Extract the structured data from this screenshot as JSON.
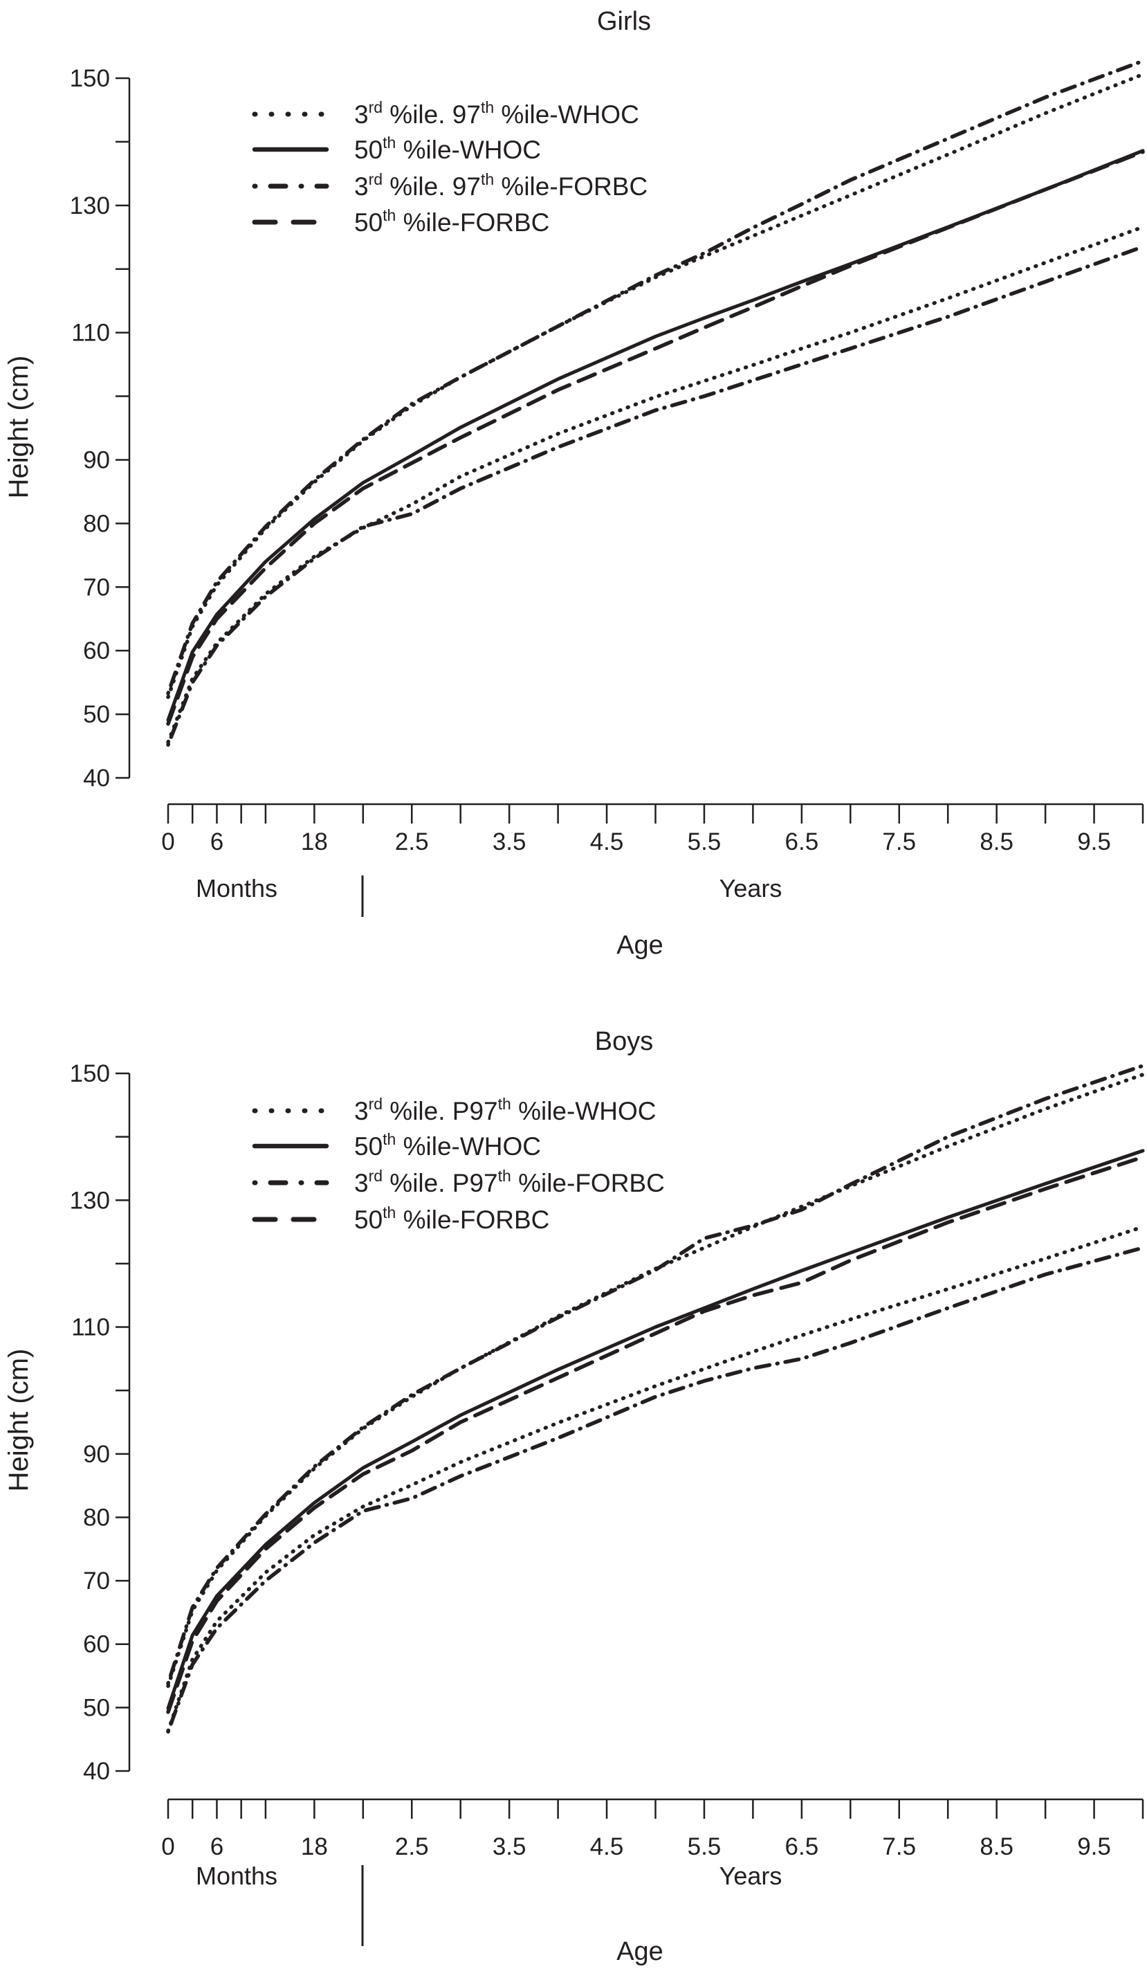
{
  "chart_data": [
    {
      "type": "line",
      "title": "Girls",
      "xlabel": "Age",
      "ylabel": "Height (cm)",
      "xlim": [
        0,
        10
      ],
      "ylim": [
        40,
        150
      ],
      "grid": false,
      "legend_position": "top-left",
      "x_unit_note": "age in years",
      "x_segments": [
        {
          "label": "Months"
        },
        {
          "label": "Years"
        }
      ],
      "x_ticks": [
        0,
        0.25,
        0.5,
        0.75,
        1,
        1.5,
        2,
        2.5,
        3,
        3.5,
        4,
        4.5,
        5,
        5.5,
        6,
        6.5,
        7,
        7.5,
        8,
        8.5,
        9,
        9.5,
        10
      ],
      "x_tick_labels": [
        {
          "at": 0,
          "text": "0"
        },
        {
          "at": 0.5,
          "text": "6"
        },
        {
          "at": 1.5,
          "text": "18"
        },
        {
          "at": 2.5,
          "text": "2.5"
        },
        {
          "at": 3.5,
          "text": "3.5"
        },
        {
          "at": 4.5,
          "text": "4.5"
        },
        {
          "at": 5.5,
          "text": "5.5"
        },
        {
          "at": 6.5,
          "text": "6.5"
        },
        {
          "at": 7.5,
          "text": "7.5"
        },
        {
          "at": 8.5,
          "text": "8.5"
        },
        {
          "at": 9.5,
          "text": "9.5"
        }
      ],
      "y_ticks": [
        40,
        50,
        60,
        70,
        80,
        90,
        100,
        110,
        120,
        130,
        140,
        150
      ],
      "y_tick_labels": [
        "40",
        "50",
        "60",
        "70",
        "80",
        "90",
        "110",
        "130",
        "150"
      ],
      "legend": [
        {
          "style": "dotted",
          "parts": [
            {
              "t": "3"
            },
            {
              "t": "rd",
              "sup": true
            },
            {
              "t": " %ile. 97"
            },
            {
              "t": "th",
              "sup": true
            },
            {
              "t": " %ile-WHOC"
            }
          ]
        },
        {
          "style": "solid",
          "parts": [
            {
              "t": "50"
            },
            {
              "t": "th",
              "sup": true
            },
            {
              "t": " %ile-WHOC"
            }
          ]
        },
        {
          "style": "dashdot",
          "parts": [
            {
              "t": "3"
            },
            {
              "t": "rd",
              "sup": true
            },
            {
              "t": " %ile. 97"
            },
            {
              "t": "th",
              "sup": true
            },
            {
              "t": " %ile-FORBC"
            }
          ]
        },
        {
          "style": "dashed",
          "parts": [
            {
              "t": "50"
            },
            {
              "t": "th",
              "sup": true
            },
            {
              "t": " %ile-FORBC"
            }
          ]
        }
      ],
      "x": [
        0,
        0.25,
        0.5,
        1,
        1.5,
        2,
        2.5,
        3,
        4,
        5,
        5.5,
        6,
        6.5,
        7,
        8,
        9,
        10
      ],
      "series": [
        {
          "group": "WHOC 3rd",
          "style": "dotted",
          "values": [
            45.6,
            55.6,
            61.2,
            68.9,
            74.8,
            79.3,
            83,
            87.4,
            94.1,
            99.9,
            102.4,
            104.9,
            107.5,
            110,
            115.4,
            121,
            126.6
          ]
        },
        {
          "group": "WHOC 97th",
          "style": "dotted",
          "values": [
            52.7,
            63.8,
            70.3,
            79.2,
            86.5,
            93,
            98.5,
            103,
            111,
            118.7,
            122,
            125.2,
            128.4,
            131.6,
            138,
            144.5,
            150.6
          ]
        },
        {
          "group": "WHOC 50th",
          "style": "solid",
          "values": [
            49.1,
            59.8,
            65.7,
            74.0,
            80.7,
            86.4,
            90.7,
            95.1,
            102.7,
            109.4,
            112.3,
            115.1,
            118,
            120.8,
            126.6,
            132.5,
            138.6
          ]
        },
        {
          "group": "FORBC 3rd",
          "style": "dashdot",
          "values": [
            45.2,
            55,
            60.8,
            68.5,
            74.5,
            79.5,
            81.5,
            85.5,
            92,
            97.8,
            100,
            102.5,
            105,
            107.5,
            112.5,
            118,
            123.5
          ]
        },
        {
          "group": "FORBC 97th",
          "style": "dashdot",
          "values": [
            53.3,
            64.3,
            70.8,
            79.5,
            86.8,
            93.2,
            98.8,
            103,
            111,
            119,
            122.5,
            126.5,
            130.2,
            134,
            140.5,
            147,
            152.7
          ]
        },
        {
          "group": "FORBC 50th",
          "style": "dashed",
          "values": [
            48.5,
            59,
            65,
            73,
            80,
            85.5,
            89.5,
            93.5,
            101,
            107.5,
            110.8,
            114,
            117.3,
            120.5,
            126.5,
            132.5,
            138.4
          ]
        }
      ]
    },
    {
      "type": "line",
      "title": "Boys",
      "xlabel": "Age",
      "ylabel": "Height (cm)",
      "xlim": [
        0,
        10
      ],
      "ylim": [
        40,
        150
      ],
      "grid": false,
      "legend_position": "top-left",
      "x_segments": [
        {
          "label": "Months"
        },
        {
          "label": "Years"
        }
      ],
      "x_ticks": [
        0,
        0.25,
        0.5,
        0.75,
        1,
        1.5,
        2,
        2.5,
        3,
        3.5,
        4,
        4.5,
        5,
        5.5,
        6,
        6.5,
        7,
        7.5,
        8,
        8.5,
        9,
        9.5,
        10
      ],
      "x_tick_labels": [
        {
          "at": 0,
          "text": "0"
        },
        {
          "at": 0.5,
          "text": "6"
        },
        {
          "at": 1.5,
          "text": "18"
        },
        {
          "at": 2.5,
          "text": "2.5"
        },
        {
          "at": 3.5,
          "text": "3.5"
        },
        {
          "at": 4.5,
          "text": "4.5"
        },
        {
          "at": 5.5,
          "text": "5.5"
        },
        {
          "at": 6.5,
          "text": "6.5"
        },
        {
          "at": 7.5,
          "text": "7.5"
        },
        {
          "at": 8.5,
          "text": "8.5"
        },
        {
          "at": 9.5,
          "text": "9.5"
        }
      ],
      "y_ticks": [
        40,
        50,
        60,
        70,
        80,
        90,
        100,
        110,
        120,
        130,
        140,
        150
      ],
      "y_tick_labels": [
        "40",
        "50",
        "60",
        "70",
        "80",
        "90",
        "110",
        "130",
        "150"
      ],
      "legend": [
        {
          "style": "dotted",
          "parts": [
            {
              "t": "3"
            },
            {
              "t": "rd",
              "sup": true
            },
            {
              "t": " %ile. P97"
            },
            {
              "t": "th",
              "sup": true
            },
            {
              "t": " %ile-WHOC"
            }
          ]
        },
        {
          "style": "solid",
          "parts": [
            {
              "t": "50"
            },
            {
              "t": "th",
              "sup": true
            },
            {
              "t": " %ile-WHOC"
            }
          ]
        },
        {
          "style": "dashdot",
          "parts": [
            {
              "t": "3"
            },
            {
              "t": "rd",
              "sup": true
            },
            {
              "t": " %ile. P97"
            },
            {
              "t": "th",
              "sup": true
            },
            {
              "t": " %ile-FORBC"
            }
          ]
        },
        {
          "style": "dashed",
          "parts": [
            {
              "t": "50"
            },
            {
              "t": "th",
              "sup": true
            },
            {
              "t": " %ile-FORBC"
            }
          ]
        }
      ],
      "x": [
        0,
        0.25,
        0.5,
        1,
        1.5,
        2,
        2.5,
        3,
        4,
        5,
        5.5,
        6,
        6.5,
        7,
        8,
        9,
        10
      ],
      "series": [
        {
          "group": "WHOC 3rd",
          "style": "dotted",
          "values": [
            46.3,
            57.6,
            63.6,
            71.3,
            77.2,
            81.7,
            85.1,
            88.7,
            94.9,
            100.7,
            103.4,
            106.1,
            108.7,
            111.2,
            116,
            120.8,
            125.8
          ]
        },
        {
          "group": "WHOC 97th",
          "style": "dotted",
          "values": [
            53.4,
            65.3,
            71.6,
            80.2,
            87.7,
            94,
            99,
            103.5,
            111.7,
            119.2,
            122.5,
            125.8,
            129,
            132.2,
            138.5,
            144.4,
            149.8
          ]
        },
        {
          "group": "WHOC 50th",
          "style": "solid",
          "values": [
            49.9,
            61.4,
            67.6,
            75.7,
            82.3,
            87.8,
            91.9,
            96.1,
            103.3,
            110,
            113,
            116,
            118.9,
            121.7,
            127.3,
            132.6,
            137.8
          ]
        },
        {
          "group": "FORBC 3rd",
          "style": "dashdot",
          "values": [
            46.2,
            56.8,
            62.5,
            70,
            76,
            81,
            83,
            86.5,
            92.5,
            99,
            101.5,
            103.5,
            105,
            107.5,
            113,
            118.3,
            122.5
          ]
        },
        {
          "group": "FORBC 97th",
          "style": "dashdot",
          "values": [
            53.8,
            65.8,
            72,
            80.5,
            88,
            94.2,
            99.3,
            103.5,
            111.5,
            119,
            124,
            126,
            128.5,
            132.5,
            140,
            146,
            151.2
          ]
        },
        {
          "group": "FORBC 50th",
          "style": "dashed",
          "values": [
            49.3,
            60.5,
            66.8,
            75,
            81.5,
            86.8,
            90.5,
            95,
            102,
            109,
            112.5,
            115,
            117,
            120.5,
            126.5,
            131.8,
            136.8
          ]
        }
      ]
    }
  ]
}
